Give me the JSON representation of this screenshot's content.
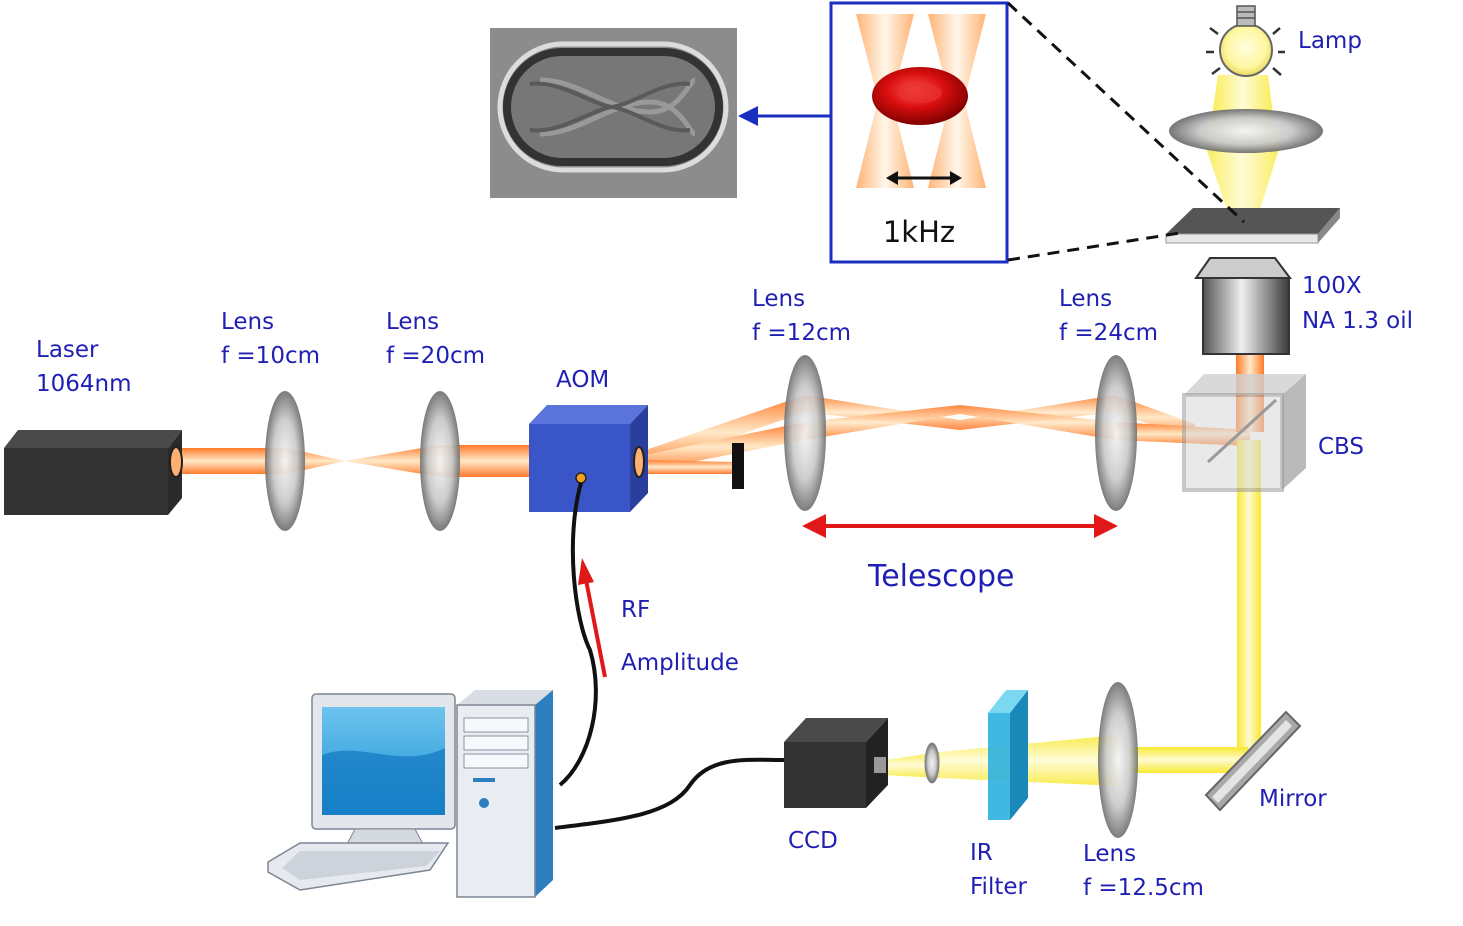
{
  "labels": {
    "laser_line1": "Laser",
    "laser_line2": "1064nm",
    "lens1_line1": "Lens",
    "lens1_line2": "f =10cm",
    "lens2_line1": "Lens",
    "lens2_line2": "f =20cm",
    "aom": "AOM",
    "lens3_line1": "Lens",
    "lens3_line2": "f =12cm",
    "lens4_line1": "Lens",
    "lens4_line2": "f =24cm",
    "objective_line1": "100X",
    "objective_line2": "NA 1.3 oil",
    "lamp": "Lamp",
    "cbs": "CBS",
    "telescope": "Telescope",
    "rf": "RF",
    "amplitude": "Amplitude",
    "ccd": "CCD",
    "filter_line1": "IR",
    "filter_line2": "Filter",
    "lens5_line1": "Lens",
    "lens5_line2": "f =12.5cm",
    "mirror": "Mirror",
    "inset_frequency": "1kHz"
  },
  "colors": {
    "label_text": "#1f1fb4",
    "laser_beam": "#ff8a3d",
    "illumination_beam": "#fff25a",
    "inset_border": "#1a2fc0",
    "arrow_red": "#e01818",
    "arrow_blue": "#1a2fc0",
    "aom_body": "#3a55c8",
    "cell_red": "#d01010"
  }
}
